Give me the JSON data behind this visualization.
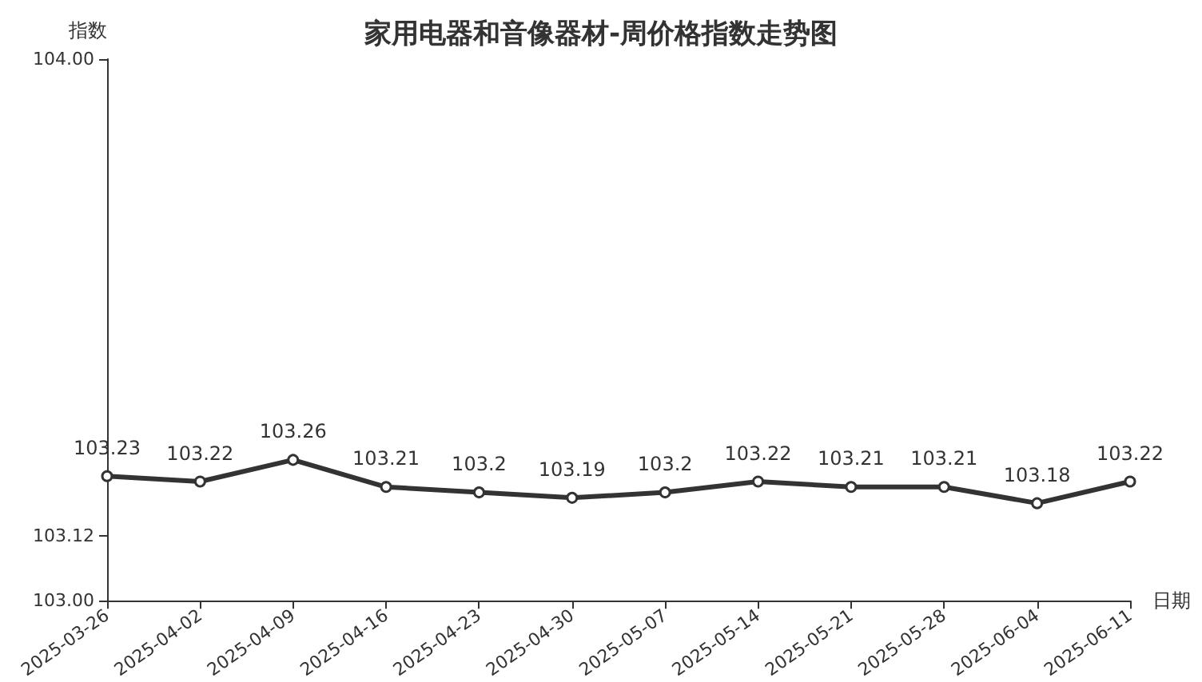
{
  "chart_data": {
    "type": "line",
    "title": "家用电器和音像器材-周价格指数走势图",
    "xlabel": "日期",
    "ylabel": "指数",
    "categories": [
      "2025-03-26",
      "2025-04-02",
      "2025-04-09",
      "2025-04-16",
      "2025-04-23",
      "2025-04-30",
      "2025-05-07",
      "2025-05-14",
      "2025-05-21",
      "2025-05-28",
      "2025-06-04",
      "2025-06-11"
    ],
    "series": [
      {
        "color": "#333333",
        "values": [
          103.23,
          103.22,
          103.26,
          103.21,
          103.2,
          103.19,
          103.2,
          103.22,
          103.21,
          103.21,
          103.18,
          103.22
        ]
      }
    ],
    "ylim": [
      103,
      104
    ],
    "yticks": [
      {
        "value": 103,
        "label": "103.00"
      },
      {
        "value": 103.12,
        "label": "103.12"
      },
      {
        "value": 104,
        "label": "104.00"
      }
    ],
    "data_labels": true,
    "grid": false,
    "marker": "circle",
    "line_style": "solid"
  }
}
